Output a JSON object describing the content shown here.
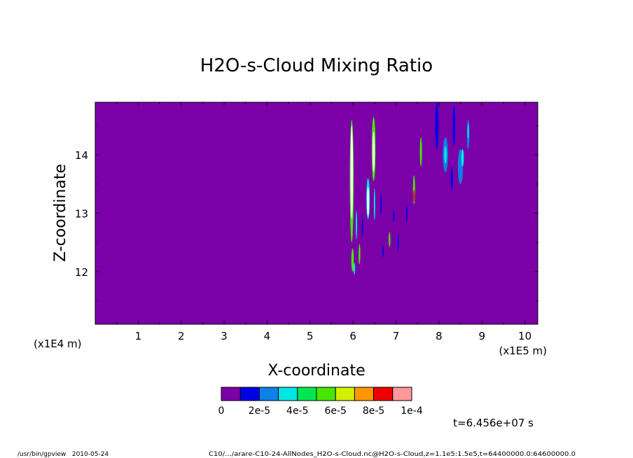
{
  "chart_data": {
    "type": "heatmap",
    "title": "H2O-s-Cloud Mixing Ratio",
    "xlabel": "X-coordinate",
    "ylabel": "Z-coordinate",
    "x_scale_note": "(x1E5 m)",
    "y_scale_note": "(x1E4 m)",
    "xlim": [
      0,
      10.3
    ],
    "ylim": [
      11.1,
      14.9
    ],
    "x_ticks": [
      "1",
      "2",
      "3",
      "4",
      "5",
      "6",
      "7",
      "8",
      "9",
      "10"
    ],
    "y_ticks": [
      "12",
      "13",
      "14"
    ],
    "grid": false,
    "background_color": "#7b00a8",
    "colorbar": {
      "colors": [
        "#7b00a8",
        "#0000e6",
        "#0a82e6",
        "#00e6e6",
        "#00e650",
        "#46e600",
        "#d2f000",
        "#ff9600",
        "#f00000",
        "#ff9898"
      ],
      "labels": [
        "0",
        "2e-5",
        "4e-5",
        "6e-5",
        "8e-5",
        "1e-4"
      ]
    },
    "features": [
      {
        "x": 5.97,
        "z": 13.55,
        "width": 0.09,
        "height": 2.1,
        "color": "#46e600"
      },
      {
        "x": 5.97,
        "z": 13.7,
        "width": 0.06,
        "height": 1.6,
        "color": "#ffffff"
      },
      {
        "x": 5.99,
        "z": 12.2,
        "width": 0.06,
        "height": 0.4,
        "color": "#46e600"
      },
      {
        "x": 6.03,
        "z": 12.05,
        "width": 0.04,
        "height": 0.2,
        "color": "#00e6e6"
      },
      {
        "x": 6.15,
        "z": 12.3,
        "width": 0.04,
        "height": 0.35,
        "color": "#46e600"
      },
      {
        "x": 6.08,
        "z": 12.8,
        "width": 0.03,
        "height": 0.5,
        "color": "#00e6e6"
      },
      {
        "x": 6.22,
        "z": 12.75,
        "width": 0.03,
        "height": 0.3,
        "color": "#0000e6"
      },
      {
        "x": 6.35,
        "z": 13.25,
        "width": 0.08,
        "height": 0.7,
        "color": "#00e6e6"
      },
      {
        "x": 6.35,
        "z": 13.2,
        "width": 0.05,
        "height": 0.5,
        "color": "#ffffff"
      },
      {
        "x": 6.48,
        "z": 14.1,
        "width": 0.09,
        "height": 1.1,
        "color": "#46e600"
      },
      {
        "x": 6.48,
        "z": 14.05,
        "width": 0.05,
        "height": 0.7,
        "color": "#ffffff"
      },
      {
        "x": 6.5,
        "z": 13.15,
        "width": 0.03,
        "height": 0.55,
        "color": "#00e6e6"
      },
      {
        "x": 6.65,
        "z": 13.15,
        "width": 0.03,
        "height": 0.35,
        "color": "#0000e6"
      },
      {
        "x": 6.7,
        "z": 12.35,
        "width": 0.03,
        "height": 0.2,
        "color": "#0000e6"
      },
      {
        "x": 6.85,
        "z": 12.55,
        "width": 0.04,
        "height": 0.25,
        "color": "#46e600"
      },
      {
        "x": 6.95,
        "z": 12.95,
        "width": 0.03,
        "height": 0.2,
        "color": "#0000e6"
      },
      {
        "x": 7.05,
        "z": 12.5,
        "width": 0.03,
        "height": 0.3,
        "color": "#0000e6"
      },
      {
        "x": 7.25,
        "z": 13.0,
        "width": 0.03,
        "height": 0.3,
        "color": "#0000e6"
      },
      {
        "x": 7.42,
        "z": 13.4,
        "width": 0.05,
        "height": 0.5,
        "color": "#46e600"
      },
      {
        "x": 7.42,
        "z": 13.3,
        "width": 0.03,
        "height": 0.2,
        "color": "#f00000"
      },
      {
        "x": 7.58,
        "z": 14.05,
        "width": 0.05,
        "height": 0.5,
        "color": "#46e600"
      },
      {
        "x": 7.95,
        "z": 14.5,
        "width": 0.08,
        "height": 0.8,
        "color": "#0000e6"
      },
      {
        "x": 8.15,
        "z": 14.0,
        "width": 0.12,
        "height": 0.6,
        "color": "#0a82e6"
      },
      {
        "x": 8.15,
        "z": 14.0,
        "width": 0.06,
        "height": 0.3,
        "color": "#00e6e6"
      },
      {
        "x": 8.35,
        "z": 14.5,
        "width": 0.06,
        "height": 0.7,
        "color": "#0000e6"
      },
      {
        "x": 8.3,
        "z": 13.6,
        "width": 0.05,
        "height": 0.4,
        "color": "#0000e6"
      },
      {
        "x": 8.5,
        "z": 13.8,
        "width": 0.12,
        "height": 0.6,
        "color": "#0a82e6"
      },
      {
        "x": 8.55,
        "z": 13.95,
        "width": 0.06,
        "height": 0.3,
        "color": "#00e6e6"
      },
      {
        "x": 8.68,
        "z": 14.35,
        "width": 0.06,
        "height": 0.5,
        "color": "#0a82e6"
      },
      {
        "x": 8.68,
        "z": 14.4,
        "width": 0.03,
        "height": 0.25,
        "color": "#00e6e6"
      }
    ]
  },
  "footer": {
    "time_label": "t=6.456e+07 s",
    "left": "/usr/bin/gpview   2010-05-24",
    "right": "C10/.../arare-C10-24-AllNodes_H2O-s-Cloud.nc@H2O-s-Cloud,z=1.1e5:1.5e5,t=64400000.0:64600000.0"
  }
}
